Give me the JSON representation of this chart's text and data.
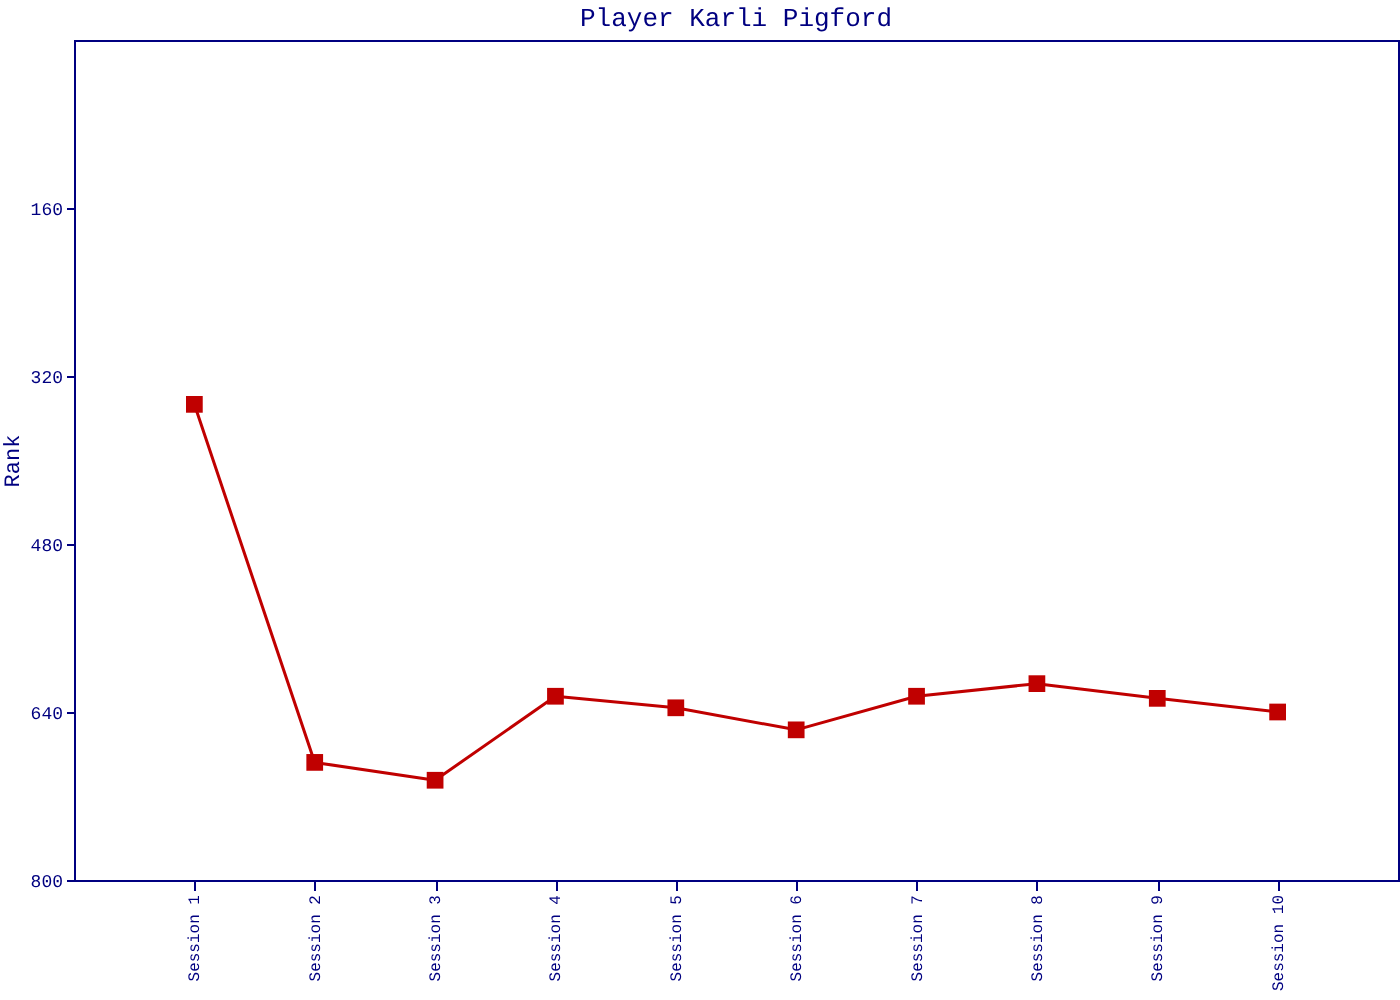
{
  "chart_data": {
    "type": "line",
    "title": "Player Karli Pigford",
    "ylabel": "Rank",
    "categories": [
      "Session 1",
      "Session 2",
      "Session 3",
      "Session 4",
      "Session 5",
      "Session 6",
      "Session 7",
      "Session 8",
      "Session 9",
      "Session 10"
    ],
    "series": [
      {
        "color": "#c00000",
        "values": [
          347,
          688,
          705,
          625,
          636,
          657,
          625,
          613,
          627,
          640
        ]
      }
    ],
    "ylim": [
      800,
      0
    ],
    "yticks": [
      160,
      320,
      480,
      640,
      800
    ],
    "grid": false,
    "marker": "square",
    "line_style": "solid"
  }
}
